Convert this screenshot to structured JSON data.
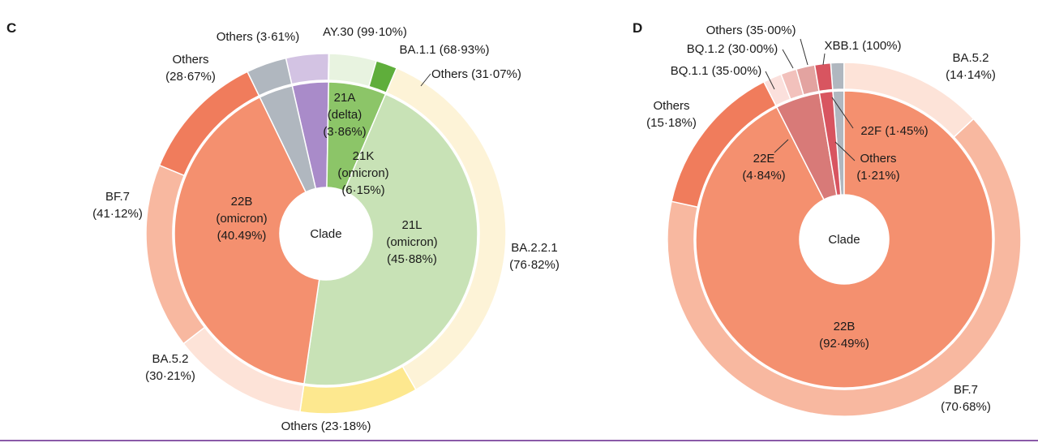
{
  "chart_data": [
    {
      "type": "pie",
      "panel": "C",
      "center_label": "Clade",
      "inner_ring": [
        {
          "id": "21A",
          "lines": [
            "21A",
            "(delta)",
            "(3·86%)"
          ],
          "value": 3.86,
          "color": "#a98bc9"
        },
        {
          "id": "21K",
          "lines": [
            "21K",
            "(omicron)",
            "(6·15%)"
          ],
          "value": 6.15,
          "color": "#8cc568"
        },
        {
          "id": "21L",
          "lines": [
            "21L",
            "(omicron)",
            "(45·88%)"
          ],
          "value": 45.88,
          "color": "#c8e2b6"
        },
        {
          "id": "22B",
          "lines": [
            "22B",
            "(omicron)",
            "(40.49%)"
          ],
          "value": 40.49,
          "color": "#f4906f"
        },
        {
          "id": "others",
          "value": 3.61,
          "color": "#b0b7bf"
        }
      ],
      "outer_ring": [
        {
          "clade": "21A",
          "lines": [
            "AY.30 (99·10%)"
          ],
          "value": 99.1,
          "color": "#d3c3e3"
        },
        {
          "clade": "21A",
          "value": 0.9,
          "color": "#e6dcf0"
        },
        {
          "clade": "21K",
          "lines": [
            "BA.1.1 (68·93%)"
          ],
          "value": 68.93,
          "color": "#e8f3e0"
        },
        {
          "clade": "21K",
          "lines": [
            "Others (31·07%)"
          ],
          "value": 31.07,
          "color": "#5fae3b"
        },
        {
          "clade": "21L",
          "lines": [
            "BA.2.2.1",
            "(76·82%)"
          ],
          "value": 76.82,
          "color": "#fdf3d7"
        },
        {
          "clade": "21L",
          "lines": [
            "Others (23·18%)"
          ],
          "value": 23.18,
          "color": "#fde88f"
        },
        {
          "clade": "22B",
          "lines": [
            "BA.5.2",
            "(30·21%)"
          ],
          "value": 30.21,
          "color": "#fde3d8"
        },
        {
          "clade": "22B",
          "lines": [
            "BF.7",
            "(41·12%)"
          ],
          "value": 41.12,
          "color": "#f8b8a0"
        },
        {
          "clade": "22B",
          "lines": [
            "Others",
            "(28·67%)"
          ],
          "value": 28.67,
          "color": "#f07c5c"
        },
        {
          "clade": "others",
          "lines": [
            "Others (3·61%)"
          ],
          "value": 100,
          "color": "#b0b7bf"
        }
      ]
    },
    {
      "type": "pie",
      "panel": "D",
      "center_label": "Clade",
      "inner_ring": [
        {
          "id": "others",
          "lines": [
            "Others",
            "(1·21%)"
          ],
          "value": 1.21,
          "color": "#b0b7bf"
        },
        {
          "id": "22B",
          "lines": [
            "22B",
            "(92·49%)"
          ],
          "value": 92.49,
          "color": "#f4906f"
        },
        {
          "id": "22E",
          "lines": [
            "22E",
            "(4·84%)"
          ],
          "value": 4.84,
          "color": "#d87a78"
        },
        {
          "id": "22F",
          "lines": [
            "22F (1·45%)"
          ],
          "value": 1.45,
          "color": "#d85560"
        }
      ],
      "outer_ring": [
        {
          "clade": "others",
          "value": 100,
          "color": "#b0b7bf"
        },
        {
          "clade": "22B",
          "lines": [
            "BA.5.2",
            "(14·14%)"
          ],
          "value": 14.14,
          "color": "#fde3d8"
        },
        {
          "clade": "22B",
          "lines": [
            "BF.7",
            "(70·68%)"
          ],
          "value": 70.68,
          "color": "#f8b8a0"
        },
        {
          "clade": "22B",
          "lines": [
            "Others",
            "(15·18%)"
          ],
          "value": 15.18,
          "color": "#f07c5c"
        },
        {
          "clade": "22E",
          "lines": [
            "BQ.1.1 (35·00%)"
          ],
          "value": 35.0,
          "color": "#fbe0dc"
        },
        {
          "clade": "22E",
          "lines": [
            "BQ.1.2 (30·00%)"
          ],
          "value": 30.0,
          "color": "#f2c1bc"
        },
        {
          "clade": "22E",
          "lines": [
            "Others (35·00%)"
          ],
          "value": 35.0,
          "color": "#e3a3a0"
        },
        {
          "clade": "22F",
          "lines": [
            "XBB.1 (100%)"
          ],
          "value": 100,
          "color": "#d85560"
        }
      ]
    }
  ]
}
